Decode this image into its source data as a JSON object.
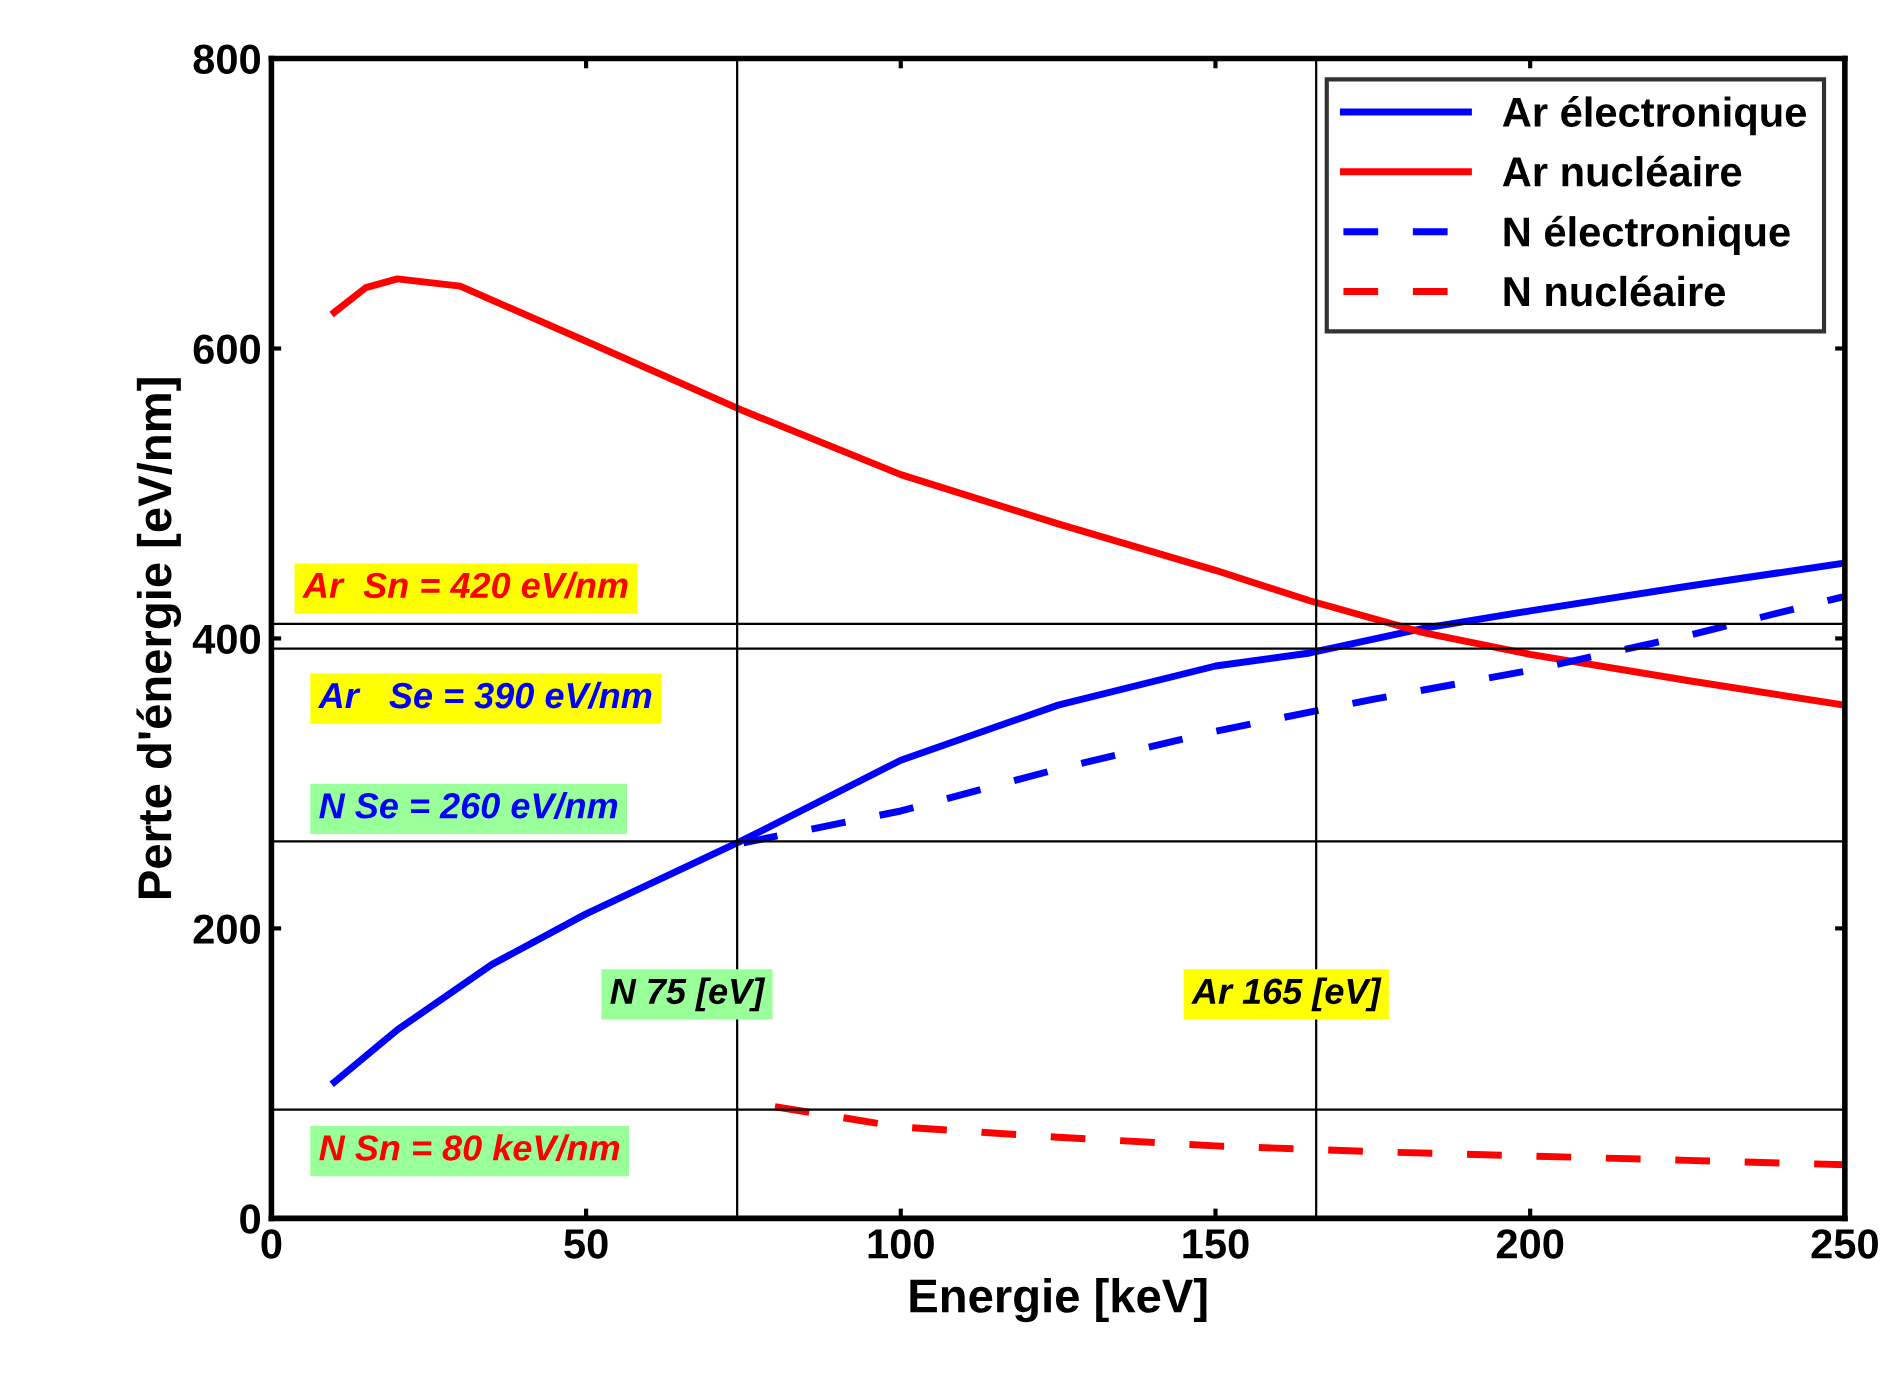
{
  "chart_data": {
    "type": "line",
    "xlabel": "Energie [keV]",
    "ylabel": "Perte d'énergie [eV/nm]",
    "xlim": [
      0,
      250
    ],
    "ylim": [
      0,
      800
    ],
    "xticks": [
      0,
      50,
      100,
      150,
      200,
      250
    ],
    "yticks": [
      0,
      200,
      400,
      600,
      800
    ],
    "grid": false,
    "legend": "top right",
    "series": [
      {
        "name": "Ar électronique",
        "color": "#0000ff",
        "line_style": "solid",
        "x": [
          10,
          20,
          35,
          50,
          75,
          100,
          125,
          150,
          165,
          183,
          200,
          225,
          250
        ],
        "values": [
          94,
          130,
          175,
          210,
          261,
          316,
          354,
          381,
          390,
          407,
          419,
          436,
          452
        ]
      },
      {
        "name": "Ar nucléaire",
        "color": "#ff0000",
        "line_style": "solid",
        "x": [
          10,
          15,
          20,
          30,
          50,
          75,
          100,
          125,
          150,
          165,
          183,
          200,
          225,
          250
        ],
        "values": [
          625,
          642,
          648,
          643,
          605,
          557,
          513,
          479,
          447,
          426,
          404,
          389,
          371,
          354
        ]
      },
      {
        "name": "N électronique",
        "color": "#0000ff",
        "line_style": "dashed",
        "x": [
          75,
          100,
          125,
          150,
          175,
          200,
          225,
          250
        ],
        "values": [
          259,
          281,
          310,
          336,
          358,
          378,
          402,
          429
        ]
      },
      {
        "name": "N nucléaire",
        "color": "#ff0000",
        "line_style": "dashed",
        "x": [
          80,
          100,
          125,
          150,
          175,
          200,
          225,
          250
        ],
        "values": [
          77,
          63,
          56,
          50,
          46,
          43,
          40,
          37
        ]
      }
    ],
    "ref_lines": [
      {
        "axis": "y",
        "value": 410,
        "color": "#000000"
      },
      {
        "axis": "y",
        "value": 393,
        "color": "#000000"
      },
      {
        "axis": "y",
        "value": 260,
        "color": "#000000"
      },
      {
        "axis": "y",
        "value": 75,
        "color": "#000000"
      },
      {
        "axis": "x",
        "value": 74,
        "color": "#000000"
      },
      {
        "axis": "x",
        "value": 166,
        "color": "#000000"
      }
    ],
    "annotations": [
      "Ar  Sn = 420 eV/nm",
      "Ar   Se = 390 eV/nm",
      "N Se = 260 eV/nm",
      "N 75 [eV]",
      "Ar 165 [eV]",
      "N Sn = 80 keV/nm"
    ]
  }
}
